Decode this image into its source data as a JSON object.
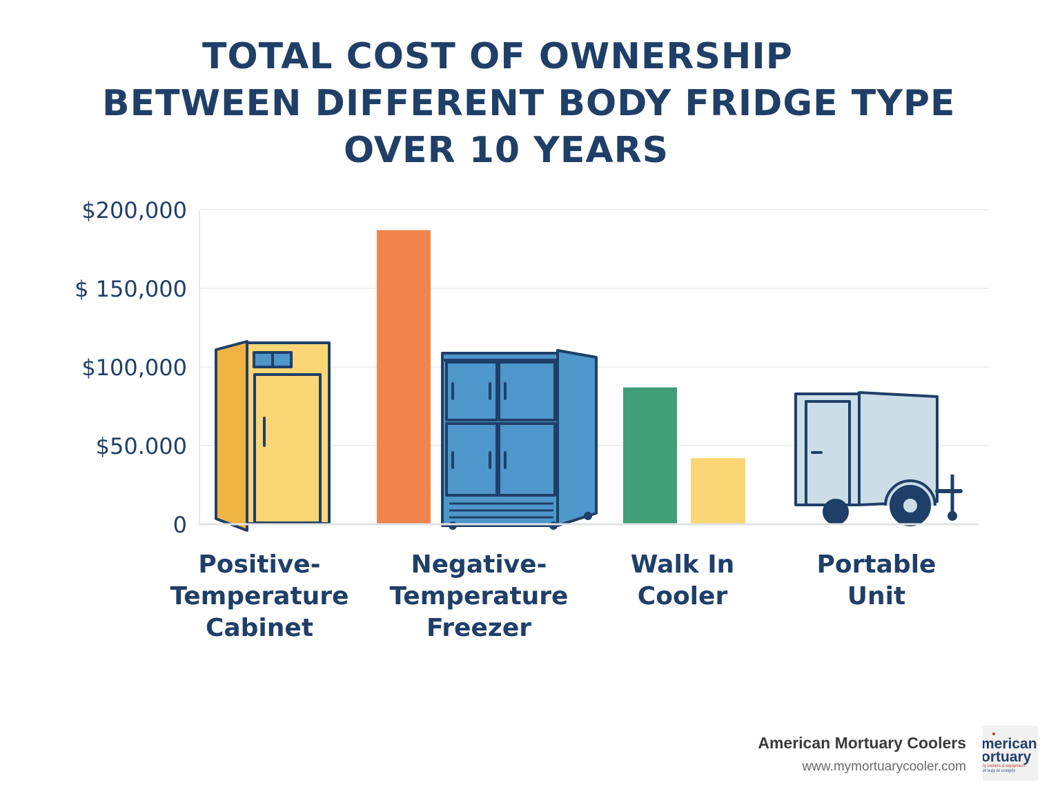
{
  "title": {
    "line1": "TOTAL COST OF OWNERSHIP",
    "line2": "BETWEEN DIFFERENT BODY FRIDGE TYPE",
    "line3": "OVER 10 YEARS"
  },
  "chart_data": {
    "type": "bar",
    "title": "TOTAL COST OF OWNERSHIP BETWEEN DIFFERENT BODY FRIDGE TYPE OVER 10 YEARS",
    "xlabel": "",
    "ylabel": "",
    "ylim": [
      0,
      200000
    ],
    "grid": true,
    "y_ticks": [
      {
        "value": 0,
        "label": "0"
      },
      {
        "value": 50000,
        "label": "$50.000"
      },
      {
        "value": 100000,
        "label": "$100,000"
      },
      {
        "value": 150000,
        "label": "$ 150,000"
      },
      {
        "value": 200000,
        "label": "$200,000"
      }
    ],
    "categories": [
      {
        "label_lines": [
          "Positive-",
          "Temperature",
          "Cabinet"
        ],
        "icon": "cabinet-icon"
      },
      {
        "label_lines": [
          "Negative-",
          "Temperature",
          "Freezer"
        ],
        "icon": "freezer-icon"
      },
      {
        "label_lines": [
          "Walk  In",
          "Cooler"
        ],
        "icon": "walk-in-cooler"
      },
      {
        "label_lines": [
          "Portable",
          "Unit"
        ],
        "icon": "trailer-icon"
      }
    ],
    "bars": [
      {
        "category": "Negative-Temperature Freezer",
        "value": 187000,
        "color": "#f0844c"
      },
      {
        "category": "Walk In Cooler",
        "value": 87000,
        "color": "#3f9e78"
      },
      {
        "category": "Walk In Cooler",
        "value": 42000,
        "color": "#fad675"
      }
    ],
    "icon_values": [
      {
        "category": "Positive-Temperature Cabinet",
        "value": 113000
      },
      {
        "category": "Negative-Temperature Freezer",
        "value": 108000
      },
      {
        "category": "Portable Unit",
        "value": 83000
      }
    ]
  },
  "colors": {
    "title": "#1f3f68",
    "outline": "#1f3f68",
    "cabinet_dark": "#f0b443",
    "cabinet_light": "#fad675",
    "freezer": "#4e97cb",
    "trailer": "#cbdde6",
    "grid": "#eceff2"
  },
  "brand": {
    "name": "American Mortuary Coolers",
    "url": "www.mymortuarycooler.com",
    "logo_line1": "merican",
    "logo_line2": "ortuary",
    "logo_line3": "ry coolers & equipment",
    "logo_line4": "et way to comply"
  }
}
